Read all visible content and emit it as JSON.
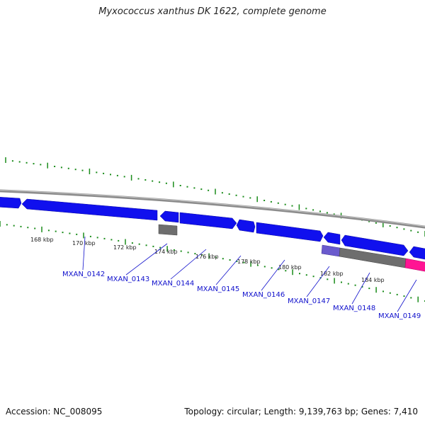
{
  "title": "Myxococcus xanthus DK 1622, complete genome",
  "footer": {
    "accession": "Accession: NC_008095",
    "stats": "Topology: circular; Length: 9,139,763 bp; Genes: 7,410"
  },
  "colors": {
    "gene_cds": "#1010ee",
    "gene_other": "#6e6e6e",
    "gene_pseudo": "#6a5acd",
    "gene_rna": "#ff1493",
    "backbone": "#8c8c8c",
    "ticks": "#1a8c1a",
    "labels": "#1010cc"
  },
  "axis": {
    "tick_labels": [
      "168 kbp",
      "170 kbp",
      "172 kbp",
      "174 kbp",
      "176 kbp",
      "178 kbp",
      "180 kbp",
      "182 kbp",
      "184 kbp"
    ]
  },
  "genes": [
    {
      "label": "MXAN_0142"
    },
    {
      "label": "MXAN_0143"
    },
    {
      "label": "MXAN_0144"
    },
    {
      "label": "MXAN_0145"
    },
    {
      "label": "MXAN_0146"
    },
    {
      "label": "MXAN_0147"
    },
    {
      "label": "MXAN_0148"
    },
    {
      "label": "MXAN_0149"
    }
  ]
}
